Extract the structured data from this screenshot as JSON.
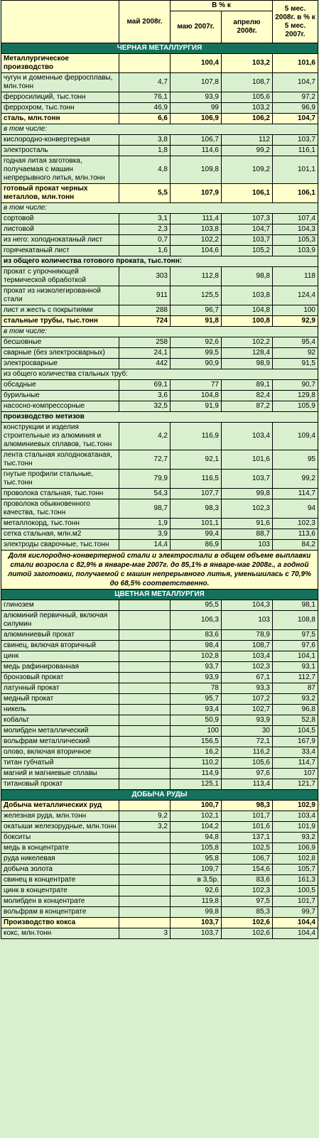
{
  "header": {
    "col_may": "май 2008г.",
    "col_pct": "В % к",
    "col_may07": "маю 2007г.",
    "col_apr": "апрелю 2008г.",
    "col_5m": "5 мес. 2008г. в % к 5 мес. 2007г."
  },
  "sections": [
    {
      "title": "ЧЕРНАЯ МЕТАЛЛУРГИЯ",
      "rows": [
        {
          "label": "Металлургическое производство",
          "v": [
            "",
            "100,4",
            "103,2",
            "101,6"
          ],
          "style": "bold"
        },
        {
          "label": "чугун и доменные ферросплавы, млн.тонн",
          "v": [
            "4,7",
            "107,8",
            "108,7",
            "104,7"
          ]
        },
        {
          "label": "ферросилиций, тыс.тонн",
          "v": [
            "76,1",
            "93,9",
            "105,6",
            "97,2"
          ]
        },
        {
          "label": "феррохром, тыс.тонн",
          "v": [
            "46,9",
            "99",
            "103,2",
            "96,9"
          ]
        },
        {
          "label": "сталь, млн.тонн",
          "v": [
            "6,6",
            "106,9",
            "106,2",
            "104,7"
          ],
          "style": "bold"
        },
        {
          "label": "в том числе:",
          "v": [],
          "style": "sub"
        },
        {
          "label": "кислородно-конвертерная",
          "v": [
            "3,8",
            "106,7",
            "112",
            "103,7"
          ]
        },
        {
          "label": "электросталь",
          "v": [
            "1,8",
            "114,6",
            "99,2",
            "116,1"
          ]
        },
        {
          "label": "годная литая заготовка, получаемая с машин непрерывного литья, млн.тонн",
          "v": [
            "4,8",
            "109,8",
            "109,2",
            "101,1"
          ]
        },
        {
          "label": "готовый прокат черных металлов, млн.тонн",
          "v": [
            "5,5",
            "107,9",
            "106,1",
            "106,1"
          ],
          "style": "bold"
        },
        {
          "label": "в том числе:",
          "v": [],
          "style": "sub"
        },
        {
          "label": "сортовой",
          "v": [
            "3,1",
            "111,4",
            "107,3",
            "107,4"
          ]
        },
        {
          "label": "листовой",
          "v": [
            "2,3",
            "103,8",
            "104,7",
            "104,3"
          ]
        },
        {
          "label": "из него: холоднокатаный лист",
          "v": [
            "0,7",
            "102,2",
            "103,7",
            "105,3"
          ]
        },
        {
          "label": "горячекатаный лист",
          "v": [
            "1,6",
            "104,6",
            "105,2",
            "103,9"
          ]
        },
        {
          "label": "из общего количества готового проката, тыс.тонн:",
          "v": [],
          "style": "group"
        },
        {
          "label": "прокат с упрочняющей термической обработкой",
          "v": [
            "303",
            "112,8",
            "98,8",
            "118"
          ]
        },
        {
          "label": "прокат из низколегированной стали",
          "v": [
            "911",
            "125,5",
            "103,8",
            "124,4"
          ]
        },
        {
          "label": "лист и жесть с покрытиями",
          "v": [
            "288",
            "96,7",
            "104,8",
            "100"
          ]
        },
        {
          "label": "стальные трубы, тыс.тонн",
          "v": [
            "724",
            "91,8",
            "100,8",
            "92,9"
          ],
          "style": "bold"
        },
        {
          "label": "в том числе:",
          "v": [],
          "style": "sub"
        },
        {
          "label": "бесшовные",
          "v": [
            "258",
            "92,6",
            "102,2",
            "95,4"
          ]
        },
        {
          "label": "сварные (без электросварных)",
          "v": [
            "24,1",
            "99,5",
            "128,4",
            "92"
          ]
        },
        {
          "label": "электросварные",
          "v": [
            "442",
            "90,9",
            "98,9",
            "91,5"
          ]
        },
        {
          "label": "из общего количества стальных труб:",
          "v": [],
          "style": "plain-span"
        },
        {
          "label": "обсадные",
          "v": [
            "69,1",
            "77",
            "89,1",
            "90,7"
          ]
        },
        {
          "label": "бурильные",
          "v": [
            "3,6",
            "104,8",
            "82,4",
            "129,8"
          ]
        },
        {
          "label": "насосно-компрессорные",
          "v": [
            "32,5",
            "91,9",
            "87,2",
            "105,9"
          ]
        },
        {
          "label": "производство метизов",
          "v": [],
          "style": "group"
        },
        {
          "label": "конструкции и изделия строительные из алюминия и алюминиевых сплавов, тыс.тонн",
          "v": [
            "4,2",
            "116,9",
            "103,4",
            "109,4"
          ]
        },
        {
          "label": "лента стальная холоднокатаная, тыс.тонн",
          "v": [
            "72,7",
            "92,1",
            "101,6",
            "95"
          ]
        },
        {
          "label": "гнутые профили стальные, тыс.тонн",
          "v": [
            "79,9",
            "116,5",
            "103,7",
            "99,2"
          ]
        },
        {
          "label": "проволока стальная, тыс.тонн",
          "v": [
            "54,3",
            "107,7",
            "99,8",
            "114,7"
          ]
        },
        {
          "label": "проволока обыкновенного качества, тыс.тонн",
          "v": [
            "98,7",
            "98,3",
            "102,3",
            "94"
          ]
        },
        {
          "label": "металлокорд, тыс.тонн",
          "v": [
            "1,9",
            "101,1",
            "91,6",
            "102,3"
          ]
        },
        {
          "label": "сетка стальная, млн.м2",
          "v": [
            "3,9",
            "99,4",
            "88,7",
            "113,6"
          ]
        },
        {
          "label": "электроды сварочные, тыс.тонн",
          "v": [
            "14,4",
            "86,9",
            "103",
            "84,2"
          ]
        }
      ],
      "note": "Доля кислородно-конвертерной стали и электростали в общем объеме выплавки стали возросла с 82,9% в январе-мае 2007г. до 85,1% в январе-мае 2008г., а годной литой заготовки, получаемой с машин непрерывного литья, уменьшилась с 70,9% до 68,5% соответственно."
    },
    {
      "title": "ЦВЕТНАЯ МЕТАЛЛУРГИЯ",
      "rows": [
        {
          "label": "глинозем",
          "v": [
            "",
            "95,5",
            "104,3",
            "98,1"
          ]
        },
        {
          "label": "алюминий первичный, включая силумин",
          "v": [
            "",
            "106,3",
            "103",
            "108,8"
          ]
        },
        {
          "label": "алюминиевый прокат",
          "v": [
            "",
            "83,6",
            "78,9",
            "97,5"
          ]
        },
        {
          "label": "свинец, включая вторичный",
          "v": [
            "",
            "98,4",
            "108,7",
            "97,6"
          ]
        },
        {
          "label": "цинк",
          "v": [
            "",
            "102,8",
            "103,4",
            "104,1"
          ]
        },
        {
          "label": "медь рафинированная",
          "v": [
            "",
            "93,7",
            "102,3",
            "93,1"
          ]
        },
        {
          "label": "бронзовый прокат",
          "v": [
            "",
            "93,9",
            "67,1",
            "112,7"
          ]
        },
        {
          "label": "латунный прокат",
          "v": [
            "",
            "78",
            "93,3",
            "87"
          ]
        },
        {
          "label": "медный прокат",
          "v": [
            "",
            "95,7",
            "107,2",
            "93,2"
          ]
        },
        {
          "label": "никель",
          "v": [
            "",
            "93,4",
            "102,7",
            "96,8"
          ]
        },
        {
          "label": "кобальт",
          "v": [
            "",
            "50,9",
            "93,9",
            "52,8"
          ]
        },
        {
          "label": "молибден металлический",
          "v": [
            "",
            "100",
            "30",
            "104,5"
          ]
        },
        {
          "label": "вольфрам металлический",
          "v": [
            "",
            "156,5",
            "72,1",
            "167,9"
          ]
        },
        {
          "label": "олово, включая вторичное",
          "v": [
            "",
            "16,2",
            "116,2",
            "33,4"
          ]
        },
        {
          "label": "титан губчатый",
          "v": [
            "",
            "110,2",
            "105,6",
            "114,7"
          ]
        },
        {
          "label": "магний и магниевые сплавы",
          "v": [
            "",
            "114,9",
            "97,6",
            "107"
          ]
        },
        {
          "label": "титановый прокат",
          "v": [
            "",
            "125,1",
            "113,4",
            "121,7"
          ]
        }
      ]
    },
    {
      "title": "ДОБЫЧА РУДЫ",
      "rows": [
        {
          "label": "Добыча металлических руд",
          "v": [
            "",
            "100,7",
            "98,3",
            "102,9"
          ],
          "style": "bold"
        },
        {
          "label": "железная руда, млн.тонн",
          "v": [
            "9,2",
            "102,1",
            "101,7",
            "103,4"
          ]
        },
        {
          "label": "окатыши железорудные, млн.тонн",
          "v": [
            "3,2",
            "104,2",
            "101,6",
            "101,9"
          ]
        },
        {
          "label": "бокситы",
          "v": [
            "",
            "94,8",
            "137,1",
            "93,2"
          ]
        },
        {
          "label": "медь в концентрате",
          "v": [
            "",
            "105,8",
            "102,5",
            "106,9"
          ]
        },
        {
          "label": "руда никелевая",
          "v": [
            "",
            "95,8",
            "106,7",
            "102,8"
          ]
        },
        {
          "label": "добыча золота",
          "v": [
            "",
            "109,7",
            "154,6",
            "105,7"
          ]
        },
        {
          "label": "свинец в концентрате",
          "v": [
            "",
            "в 3,5р.",
            "83,6",
            "161,3"
          ]
        },
        {
          "label": "цинк в концентрате",
          "v": [
            "",
            "92,6",
            "102,3",
            "100,5"
          ]
        },
        {
          "label": "молибден в концентрате",
          "v": [
            "",
            "119,8",
            "97,5",
            "101,7"
          ]
        },
        {
          "label": "вольфрам в концентрате",
          "v": [
            "",
            "99,8",
            "85,3",
            "99,7"
          ]
        },
        {
          "label": "Производство кокса",
          "v": [
            "",
            "103,7",
            "102,6",
            "104,4"
          ],
          "style": "bold"
        },
        {
          "label": "кокс, млн.тонн",
          "v": [
            "3",
            "103,7",
            "102,6",
            "104,4"
          ]
        }
      ]
    }
  ]
}
